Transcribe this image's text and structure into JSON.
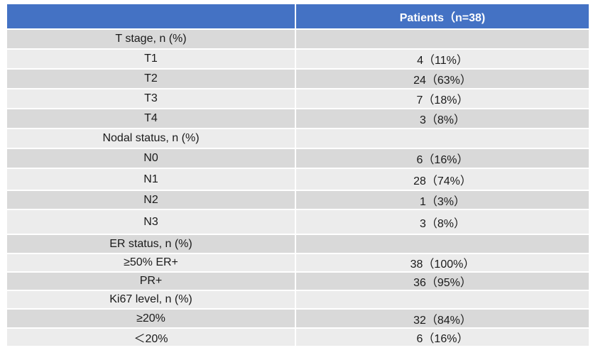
{
  "table": {
    "header": {
      "col1": "",
      "col2": "Patients（n=38)"
    },
    "rows": [
      {
        "label": "T stage, n (%)",
        "value": ""
      },
      {
        "label": "T1",
        "value": "4（11%）"
      },
      {
        "label": "T2",
        "value": "24（63%）"
      },
      {
        "label": "T3",
        "value": "7（18%）"
      },
      {
        "label": "T4",
        "value": "3（8%）"
      },
      {
        "label": "Nodal status, n (%)",
        "value": ""
      },
      {
        "label": "N0",
        "value": "6（16%）"
      },
      {
        "label": "N1",
        "value": "28（74%）"
      },
      {
        "label": "N2",
        "value": "1（3%）"
      },
      {
        "label": "N3",
        "value": "3（8%）"
      },
      {
        "label": "ER status, n (%)",
        "value": ""
      },
      {
        "label": "≥50% ER+",
        "value": "38（100%）"
      },
      {
        "label": "PR+",
        "value": "36（95%）"
      },
      {
        "label": "Ki67 level, n (%)",
        "value": ""
      },
      {
        "label": "≥20%",
        "value": "32（84%）"
      },
      {
        "label": "＜20%",
        "value": "6（16%）"
      }
    ]
  }
}
